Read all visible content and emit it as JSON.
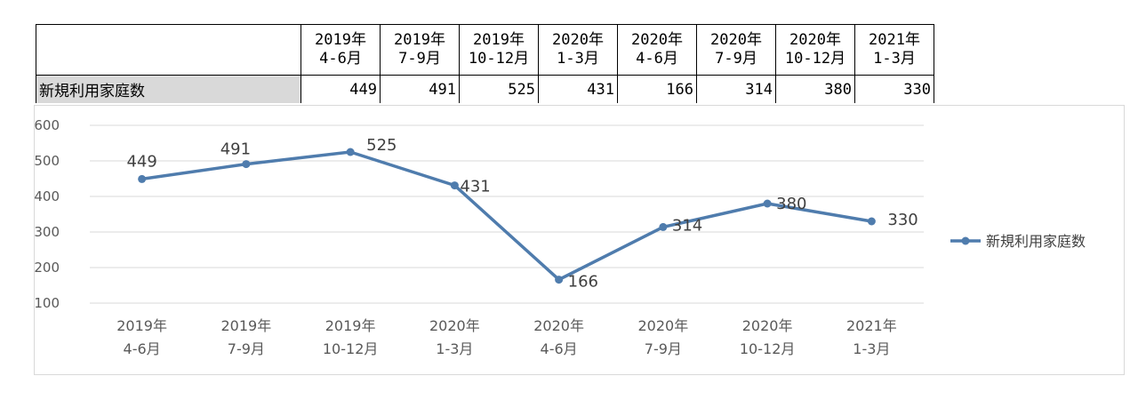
{
  "table": {
    "row_label": "新規利用家庭数",
    "columns": [
      {
        "year": "2019年",
        "period": "4-6月",
        "value": "449"
      },
      {
        "year": "2019年",
        "period": "7-9月",
        "value": "491"
      },
      {
        "year": "2019年",
        "period": "10-12月",
        "value": "525"
      },
      {
        "year": "2020年",
        "period": "1-3月",
        "value": "431"
      },
      {
        "year": "2020年",
        "period": "4-6月",
        "value": "166"
      },
      {
        "year": "2020年",
        "period": "7-9月",
        "value": "314"
      },
      {
        "year": "2020年",
        "period": "10-12月",
        "value": "380"
      },
      {
        "year": "2021年",
        "period": "1-3月",
        "value": "330"
      }
    ]
  },
  "chart_data": {
    "type": "line",
    "categories": [
      [
        "2019年",
        "4-6月"
      ],
      [
        "2019年",
        "7-9月"
      ],
      [
        "2019年",
        "10-12月"
      ],
      [
        "2020年",
        "1-3月"
      ],
      [
        "2020年",
        "4-6月"
      ],
      [
        "2020年",
        "7-9月"
      ],
      [
        "2020年",
        "10-12月"
      ],
      [
        "2021年",
        "1-3月"
      ]
    ],
    "series": [
      {
        "name": "新規利用家庭数",
        "values": [
          449,
          491,
          525,
          431,
          166,
          314,
          380,
          330
        ]
      }
    ],
    "yticks": [
      "100",
      "200",
      "300",
      "400",
      "500",
      "600"
    ],
    "ylim": [
      100,
      600
    ],
    "grid": true,
    "legend": "right",
    "data_labels": true,
    "colors": {
      "series": "#4f7cad",
      "grid": "#d9d9d9",
      "axis_text": "#595959",
      "label_text": "#404040"
    }
  }
}
